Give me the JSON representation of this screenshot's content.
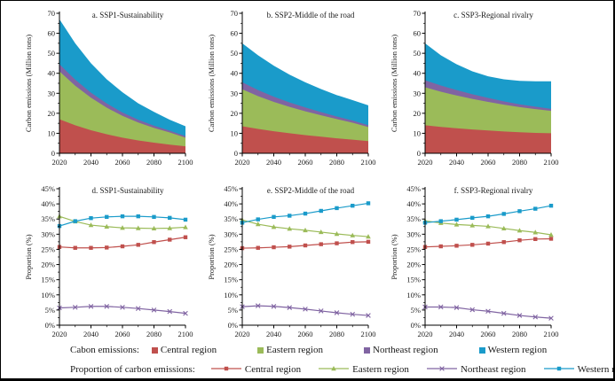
{
  "colors": {
    "central": "#c0504d",
    "eastern": "#9bbb59",
    "northeast": "#8064a2",
    "western": "#1a9bca",
    "axis": "#000000",
    "background": "#ffffff"
  },
  "years": [
    2020,
    2030,
    2040,
    2050,
    2060,
    2070,
    2080,
    2090,
    2100
  ],
  "x_tick_labels": [
    "2020",
    "2040",
    "2060",
    "2080",
    "2100"
  ],
  "chart_data": [
    {
      "id": "a",
      "type": "area",
      "stacked": true,
      "title": "a. SSP1-Sustainability",
      "ylabel": "Carbon emissions (Million tons)",
      "ylim": [
        0,
        70
      ],
      "ytick_step": 10,
      "percent": false,
      "series": [
        {
          "name": "Central region",
          "region": "central",
          "values": [
            17.0,
            14.0,
            11.5,
            9.5,
            7.8,
            6.4,
            5.3,
            4.3,
            3.5
          ]
        },
        {
          "name": "Eastern region",
          "region": "eastern",
          "values": [
            24.0,
            19.8,
            16.3,
            13.3,
            10.9,
            9.0,
            7.4,
            6.1,
            4.3
          ]
        },
        {
          "name": "Northeast region",
          "region": "northeast",
          "values": [
            3.5,
            3.0,
            2.5,
            2.1,
            1.7,
            1.4,
            1.1,
            0.9,
            0.8
          ]
        },
        {
          "name": "Western region",
          "region": "western",
          "values": [
            22.5,
            18.2,
            14.7,
            12.1,
            10.1,
            8.2,
            6.9,
            5.5,
            4.9
          ]
        }
      ]
    },
    {
      "id": "b",
      "type": "area",
      "stacked": true,
      "title": "b. SSP2-Middle of the road",
      "ylabel": "Carbon emissions (Million tons)",
      "ylim": [
        0,
        70
      ],
      "ytick_step": 10,
      "percent": false,
      "series": [
        {
          "name": "Central region",
          "region": "central",
          "values": [
            13.5,
            12.2,
            11.0,
            10.0,
            9.1,
            8.3,
            7.5,
            6.8,
            6.1
          ]
        },
        {
          "name": "Eastern region",
          "region": "eastern",
          "values": [
            18.5,
            16.4,
            14.7,
            13.2,
            11.9,
            10.7,
            9.6,
            8.5,
            7.0
          ]
        },
        {
          "name": "Northeast region",
          "region": "northeast",
          "values": [
            3.5,
            3.0,
            2.6,
            2.2,
            1.9,
            1.6,
            1.3,
            1.1,
            0.9
          ]
        },
        {
          "name": "Western region",
          "region": "western",
          "values": [
            19.5,
            17.4,
            15.5,
            13.9,
            12.6,
            11.5,
            10.7,
            10.2,
            10.0
          ]
        }
      ]
    },
    {
      "id": "c",
      "type": "area",
      "stacked": true,
      "title": "c. SSP3-Regional rivalry",
      "ylabel": "Carbon emissions (Million tons)",
      "ylim": [
        0,
        70
      ],
      "ytick_step": 10,
      "percent": false,
      "series": [
        {
          "name": "Central region",
          "region": "central",
          "values": [
            14.0,
            13.2,
            12.5,
            11.9,
            11.4,
            10.9,
            10.5,
            10.2,
            10.0
          ]
        },
        {
          "name": "Eastern region",
          "region": "eastern",
          "values": [
            19.0,
            17.6,
            16.4,
            15.3,
            14.3,
            13.4,
            12.6,
            11.9,
            11.2
          ]
        },
        {
          "name": "Northeast region",
          "region": "northeast",
          "values": [
            3.5,
            3.1,
            2.7,
            2.3,
            2.0,
            1.7,
            1.4,
            1.2,
            1.0
          ]
        },
        {
          "name": "Western region",
          "region": "western",
          "values": [
            18.5,
            15.1,
            12.9,
            11.5,
            10.8,
            11.0,
            11.7,
            12.7,
            13.8
          ]
        }
      ]
    },
    {
      "id": "d",
      "type": "line",
      "stacked": false,
      "title": "d. SSP1-Sustainability",
      "ylabel": "Proportion (%)",
      "ylim": [
        0,
        45
      ],
      "ytick_step": 5,
      "percent": true,
      "series": [
        {
          "name": "Central region",
          "region": "central",
          "marker": "square",
          "values": [
            25.8,
            25.5,
            25.5,
            25.6,
            26.0,
            26.5,
            27.4,
            28.2,
            29.0
          ]
        },
        {
          "name": "Eastern region",
          "region": "eastern",
          "marker": "triangle",
          "values": [
            35.9,
            34.2,
            33.0,
            32.5,
            32.1,
            32.0,
            31.9,
            32.0,
            32.3
          ]
        },
        {
          "name": "Northeast region",
          "region": "northeast",
          "marker": "x",
          "values": [
            5.7,
            5.9,
            6.2,
            6.2,
            5.9,
            5.5,
            5.0,
            4.5,
            3.9
          ]
        },
        {
          "name": "Western region",
          "region": "western",
          "marker": "square",
          "values": [
            32.7,
            34.3,
            35.3,
            35.7,
            35.9,
            35.9,
            35.7,
            35.4,
            34.8
          ]
        }
      ]
    },
    {
      "id": "e",
      "type": "line",
      "stacked": false,
      "title": "e. SSP2-Middle of the road",
      "ylabel": "Proportion (%)",
      "ylim": [
        0,
        45
      ],
      "ytick_step": 5,
      "percent": true,
      "series": [
        {
          "name": "Central region",
          "region": "central",
          "marker": "square",
          "values": [
            25.4,
            25.5,
            25.7,
            25.9,
            26.3,
            26.7,
            27.0,
            27.4,
            27.5
          ]
        },
        {
          "name": "Eastern region",
          "region": "eastern",
          "marker": "triangle",
          "values": [
            34.7,
            33.3,
            32.4,
            31.8,
            31.3,
            30.7,
            30.1,
            29.6,
            29.2
          ]
        },
        {
          "name": "Northeast region",
          "region": "northeast",
          "marker": "x",
          "values": [
            6.1,
            6.4,
            6.2,
            5.8,
            5.3,
            4.7,
            4.1,
            3.6,
            3.2
          ]
        },
        {
          "name": "Western region",
          "region": "western",
          "marker": "square",
          "values": [
            33.8,
            34.9,
            35.7,
            36.1,
            36.8,
            37.7,
            38.6,
            39.4,
            40.2
          ]
        }
      ]
    },
    {
      "id": "f",
      "type": "line",
      "stacked": false,
      "title": "f. SSP3-Regional rivalry",
      "ylabel": "Proportion (%)",
      "ylim": [
        0,
        45
      ],
      "ytick_step": 5,
      "percent": true,
      "series": [
        {
          "name": "Central region",
          "region": "central",
          "marker": "square",
          "values": [
            25.8,
            26.0,
            26.2,
            26.5,
            26.9,
            27.4,
            28.0,
            28.4,
            28.5
          ]
        },
        {
          "name": "Eastern region",
          "region": "eastern",
          "marker": "triangle",
          "values": [
            34.4,
            33.7,
            33.2,
            32.9,
            32.6,
            31.9,
            31.2,
            30.6,
            29.8
          ]
        },
        {
          "name": "Northeast region",
          "region": "northeast",
          "marker": "x",
          "values": [
            6.0,
            6.0,
            5.8,
            5.1,
            4.6,
            3.9,
            3.2,
            2.7,
            2.3
          ]
        },
        {
          "name": "Western region",
          "region": "western",
          "marker": "square",
          "values": [
            33.8,
            34.3,
            34.8,
            35.4,
            35.9,
            36.7,
            37.6,
            38.4,
            39.4
          ]
        }
      ]
    }
  ],
  "legend": {
    "row1_label": "Cabon emissions:",
    "row2_label": "Proportion of carbon emissions:",
    "items": [
      {
        "label": "Central region",
        "region": "central",
        "marker": "square"
      },
      {
        "label": "Eastern region",
        "region": "eastern",
        "marker": "triangle"
      },
      {
        "label": "Northeast region",
        "region": "northeast",
        "marker": "x"
      },
      {
        "label": "Western region",
        "region": "western",
        "marker": "square"
      }
    ]
  }
}
